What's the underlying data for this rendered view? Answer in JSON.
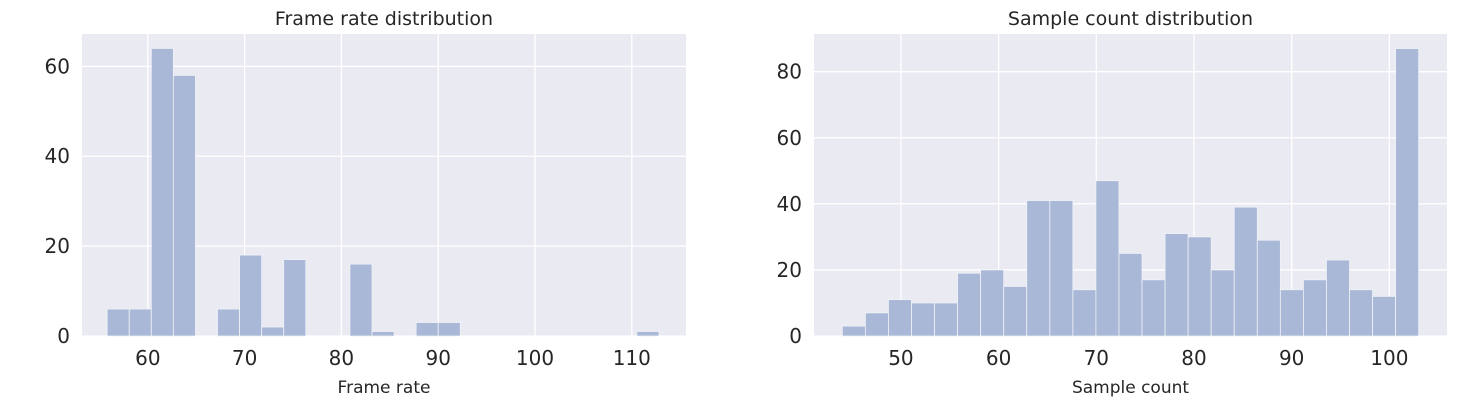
{
  "chart_data": [
    {
      "type": "bar",
      "title": "Frame rate distribution",
      "xlabel": "Frame rate",
      "ylabel": "",
      "xlim": [
        53.2,
        115.6
      ],
      "ylim": [
        0,
        67.2
      ],
      "xticks": [
        60,
        70,
        80,
        90,
        100,
        110
      ],
      "yticks": [
        0,
        20,
        40,
        60
      ],
      "bin_width": 2.28,
      "bins": [
        {
          "x0": 55.8,
          "count": 6
        },
        {
          "x0": 58.08,
          "count": 6
        },
        {
          "x0": 60.36,
          "count": 64
        },
        {
          "x0": 62.64,
          "count": 58
        },
        {
          "x0": 64.92,
          "count": 0
        },
        {
          "x0": 67.2,
          "count": 6
        },
        {
          "x0": 69.48,
          "count": 18
        },
        {
          "x0": 71.76,
          "count": 2
        },
        {
          "x0": 74.04,
          "count": 17
        },
        {
          "x0": 76.32,
          "count": 0
        },
        {
          "x0": 78.6,
          "count": 0
        },
        {
          "x0": 80.88,
          "count": 16
        },
        {
          "x0": 83.16,
          "count": 1
        },
        {
          "x0": 85.44,
          "count": 0
        },
        {
          "x0": 87.72,
          "count": 3
        },
        {
          "x0": 90.0,
          "count": 3
        },
        {
          "x0": 92.28,
          "count": 0
        },
        {
          "x0": 94.56,
          "count": 0
        },
        {
          "x0": 96.84,
          "count": 0
        },
        {
          "x0": 99.12,
          "count": 0
        },
        {
          "x0": 101.4,
          "count": 0
        },
        {
          "x0": 103.68,
          "count": 0
        },
        {
          "x0": 105.96,
          "count": 0
        },
        {
          "x0": 108.24,
          "count": 0
        },
        {
          "x0": 110.52,
          "count": 1
        }
      ],
      "bar_color": "#a8b8d6",
      "grid": true,
      "background": "#eaeaf2"
    },
    {
      "type": "bar",
      "title": "Sample count distribution",
      "xlabel": "Sample count",
      "ylabel": "",
      "xlim": [
        41.1,
        105.9
      ],
      "ylim": [
        0,
        91.4
      ],
      "xticks": [
        50,
        60,
        70,
        80,
        90,
        100
      ],
      "yticks": [
        0,
        20,
        40,
        60,
        80
      ],
      "bin_width": 2.36,
      "bins": [
        {
          "x0": 44.0,
          "count": 3
        },
        {
          "x0": 46.36,
          "count": 7
        },
        {
          "x0": 48.72,
          "count": 11
        },
        {
          "x0": 51.08,
          "count": 10
        },
        {
          "x0": 53.44,
          "count": 10
        },
        {
          "x0": 55.8,
          "count": 19
        },
        {
          "x0": 58.16,
          "count": 20
        },
        {
          "x0": 60.52,
          "count": 15
        },
        {
          "x0": 62.88,
          "count": 41
        },
        {
          "x0": 65.24,
          "count": 41
        },
        {
          "x0": 67.6,
          "count": 14
        },
        {
          "x0": 69.96,
          "count": 47
        },
        {
          "x0": 72.32,
          "count": 25
        },
        {
          "x0": 74.68,
          "count": 17
        },
        {
          "x0": 77.04,
          "count": 31
        },
        {
          "x0": 79.4,
          "count": 30
        },
        {
          "x0": 81.76,
          "count": 20
        },
        {
          "x0": 84.12,
          "count": 39
        },
        {
          "x0": 86.48,
          "count": 29
        },
        {
          "x0": 88.84,
          "count": 14
        },
        {
          "x0": 91.2,
          "count": 17
        },
        {
          "x0": 93.56,
          "count": 23
        },
        {
          "x0": 95.92,
          "count": 14
        },
        {
          "x0": 98.28,
          "count": 12
        },
        {
          "x0": 100.64,
          "count": 87
        }
      ],
      "bar_color": "#a8b8d6",
      "grid": true,
      "background": "#eaeaf2"
    }
  ]
}
